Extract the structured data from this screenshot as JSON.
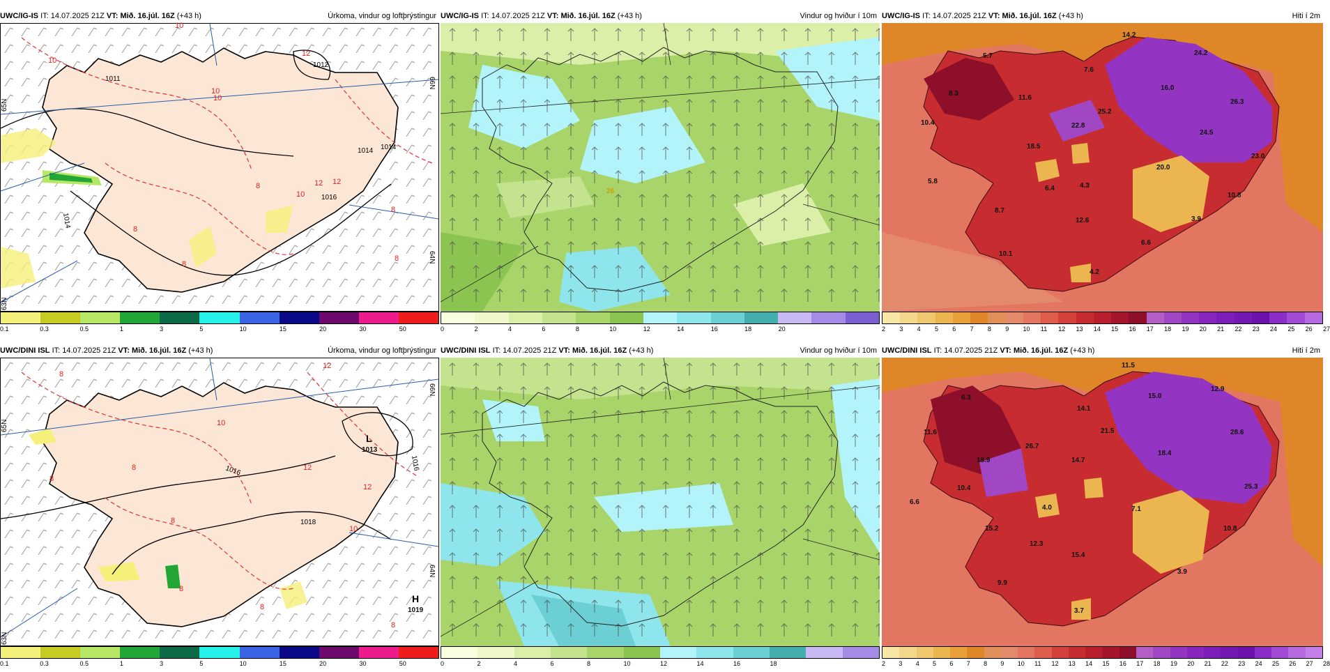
{
  "panels": [
    {
      "model": "UWC/IG-IS",
      "it_label": "IT:",
      "it_value": "14.07.2025 21Z",
      "vt_label": "VT:",
      "vt_value": "Mið. 16.júl. 16Z",
      "lead": "(+43 h)",
      "title": "Úrkoma, vindur og loftþrýstingur",
      "colorbar": {
        "colors": [
          "#f5f07a",
          "#c8cc22",
          "#b6e866",
          "#22a635",
          "#0f6b47",
          "#27f0e8",
          "#3a63e6",
          "#0b0b8a",
          "#6e0a6e",
          "#ec1c8e",
          "#ee1c1c"
        ],
        "ticks": [
          "0.1",
          "0.3",
          "0.5",
          "1",
          "3",
          "5",
          "10",
          "15",
          "20",
          "30",
          "50"
        ]
      },
      "labels": {
        "pressure": [
          "1011",
          "1012",
          "1014",
          "1014",
          "1016",
          "1014"
        ],
        "temp": [
          "10",
          "10",
          "12",
          "10",
          "8",
          "12",
          "8",
          "8",
          "10",
          "12",
          "8",
          "10",
          "8"
        ],
        "lat": [
          "65N",
          "64N",
          "63N",
          "66N"
        ]
      }
    },
    {
      "model": "UWC/IG-IS",
      "it_label": "IT:",
      "it_value": "14.07.2025 21Z",
      "vt_label": "VT:",
      "vt_value": "Mið. 16.júl. 16Z",
      "lead": "(+43 h)",
      "title": "Vindur og hviður í 10m",
      "colorbar": {
        "colors": [
          "#fbfde0",
          "#f0f7c8",
          "#dcefa8",
          "#c4e38e",
          "#a8d46a",
          "#8cc452",
          "#b2f4f9",
          "#8ee6ec",
          "#6bcfd3",
          "#44aeae",
          "#c8b8f4",
          "#a68be6",
          "#7a5ed2"
        ],
        "ticks": [
          "0",
          "2",
          "4",
          "6",
          "8",
          "10",
          "12",
          "14",
          "16",
          "18",
          "20"
        ]
      },
      "labels": {
        "gust": [
          "26"
        ]
      }
    },
    {
      "model": "UWC/IG-IS",
      "it_label": "IT:",
      "it_value": "14.07.2025 21Z",
      "vt_label": "VT:",
      "vt_value": "Mið. 16.júl. 16Z",
      "lead": "(+43 h)",
      "title": "Hiti í 2m",
      "colorbar": {
        "colors": [
          "#f7e6a6",
          "#f3d88c",
          "#efc76e",
          "#ebb550",
          "#e79f3a",
          "#de8628",
          "#e2905a",
          "#e38a6c",
          "#e27660",
          "#dd5c4c",
          "#d4403c",
          "#c72d30",
          "#b81e2c",
          "#a5162c",
          "#8e0f2a",
          "#b25ec4",
          "#a147c4",
          "#9434c2",
          "#8826be",
          "#7e1eb8",
          "#7418b2",
          "#6a12aa",
          "#8b2ec8",
          "#a04ad6",
          "#b668e0"
        ],
        "ticks": [
          "2",
          "3",
          "4",
          "5",
          "6",
          "7",
          "8",
          "9",
          "10",
          "11",
          "12",
          "13",
          "14",
          "15",
          "16",
          "17",
          "18",
          "19",
          "20",
          "21",
          "22",
          "23",
          "24",
          "25",
          "26",
          "27"
        ]
      },
      "labels": {
        "temp": [
          "14.2",
          "5.7",
          "7.6",
          "24.2",
          "8.3",
          "11.6",
          "16.0",
          "10.4",
          "22.8",
          "25.2",
          "26.3",
          "18.5",
          "24.5",
          "23.0",
          "5.8",
          "20.0",
          "6.4",
          "4.3",
          "10.8",
          "8.7",
          "12.6",
          "3.9",
          "6.6",
          "10.1",
          "4.2"
        ]
      }
    },
    {
      "model": "UWC/DINI ISL",
      "it_label": "IT:",
      "it_value": "14.07.2025 21Z",
      "vt_label": "VT:",
      "vt_value": "Mið. 16.júl. 16Z",
      "lead": "(+43 h)",
      "title": "Úrkoma, vindur og loftþrýstingur",
      "colorbar": {
        "colors": [
          "#f5f07a",
          "#c8cc22",
          "#b6e866",
          "#22a635",
          "#0f6b47",
          "#27f0e8",
          "#3a63e6",
          "#0b0b8a",
          "#6e0a6e",
          "#ec1c8e",
          "#ee1c1c"
        ],
        "ticks": [
          "0.1",
          "0.3",
          "0.5",
          "1",
          "3",
          "5",
          "10",
          "15",
          "20",
          "30",
          "50"
        ]
      },
      "labels": {
        "low_letter": "L",
        "low_value": "1013",
        "high_letter": "H",
        "high_value": "1019",
        "pressure": [
          "1016",
          "1018",
          "1016"
        ],
        "temp": [
          "12",
          "8",
          "10",
          "8",
          "12",
          "12",
          "8",
          "8",
          "10",
          "8",
          "8",
          "8"
        ],
        "lat": [
          "66N",
          "65N",
          "64N",
          "63N"
        ]
      }
    },
    {
      "model": "UWC/DINI ISL",
      "it_label": "IT:",
      "it_value": "14.07.2025 21Z",
      "vt_label": "VT:",
      "vt_value": "Mið. 16.júl. 16Z",
      "lead": "(+43 h)",
      "title": "Vindur og hviður í 10m",
      "colorbar": {
        "colors": [
          "#fbfde0",
          "#f0f7c8",
          "#dcefa8",
          "#c4e38e",
          "#a8d46a",
          "#8cc452",
          "#b2f4f9",
          "#8ee6ec",
          "#6bcfd3",
          "#44aeae",
          "#c8b8f4",
          "#a68be6"
        ],
        "ticks": [
          "0",
          "2",
          "4",
          "6",
          "8",
          "10",
          "12",
          "14",
          "16",
          "18"
        ]
      },
      "labels": {}
    },
    {
      "model": "UWC/DINI ISL",
      "it_label": "IT:",
      "it_value": "14.07.2025 21Z",
      "vt_label": "VT:",
      "vt_value": "Mið. 16.júl. 16Z",
      "lead": "(+43 h)",
      "title": "Hiti í 2m",
      "colorbar": {
        "colors": [
          "#f7e6a6",
          "#f3d88c",
          "#efc76e",
          "#ebb550",
          "#e79f3a",
          "#de8628",
          "#e2905a",
          "#e38a6c",
          "#e27660",
          "#dd5c4c",
          "#d4403c",
          "#c72d30",
          "#b81e2c",
          "#a5162c",
          "#8e0f2a",
          "#b25ec4",
          "#a147c4",
          "#9434c2",
          "#8826be",
          "#7e1eb8",
          "#7418b2",
          "#6a12aa",
          "#8b2ec8",
          "#a04ad6",
          "#b668e0",
          "#c480e8"
        ],
        "ticks": [
          "2",
          "3",
          "4",
          "5",
          "6",
          "7",
          "8",
          "9",
          "10",
          "11",
          "12",
          "13",
          "14",
          "15",
          "16",
          "17",
          "18",
          "19",
          "20",
          "21",
          "22",
          "23",
          "24",
          "25",
          "26",
          "27",
          "28"
        ]
      },
      "labels": {
        "temp": [
          "11.5",
          "6.3",
          "15.0",
          "12.9",
          "11.6",
          "14.1",
          "26.7",
          "28.6",
          "18.4",
          "18.9",
          "21.5",
          "14.7",
          "10.4",
          "25.3",
          "6.6",
          "4.0",
          "7.1",
          "10.8",
          "15.2",
          "12.3",
          "15.4",
          "3.9",
          "9.9",
          "3.7"
        ]
      }
    }
  ]
}
